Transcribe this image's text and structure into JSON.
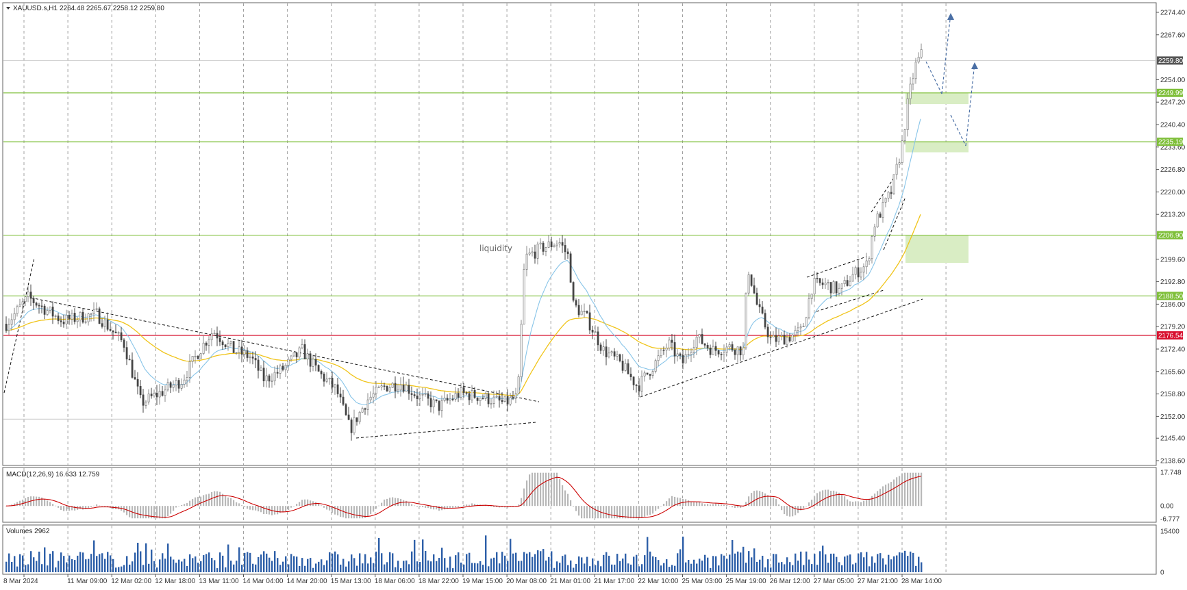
{
  "main_header": {
    "symbol": "XAUUSD.s,H1",
    "ohlc": "2264.48 2265.67 2258.12 2259.80"
  },
  "price_axis": {
    "ticks": [
      "2274.40",
      "2267.60",
      "2254.00",
      "2247.20",
      "2240.40",
      "2233.60",
      "2226.80",
      "2220.00",
      "2213.20",
      "2199.60",
      "2192.80",
      "2186.00",
      "2179.20",
      "2172.40",
      "2165.60",
      "2158.80",
      "2152.00",
      "2145.40",
      "2138.60"
    ],
    "current_price": "2259.80",
    "current_price_color": "#555555"
  },
  "levels": [
    {
      "label": "2249.99",
      "color": "#7fbf3a"
    },
    {
      "label": "2235.19",
      "color": "#7fbf3a"
    },
    {
      "label": "2206.90",
      "color": "#7fbf3a"
    },
    {
      "label": "2188.50",
      "color": "#7fbf3a"
    },
    {
      "label": "2176.54",
      "color": "#d8102e"
    }
  ],
  "annotation": {
    "liquidity": "liquidity"
  },
  "time_axis": {
    "labels": [
      "8 Mar 2024",
      "11 Mar 09:00",
      "12 Mar 02:00",
      "12 Mar 18:00",
      "13 Mar 11:00",
      "14 Mar 04:00",
      "14 Mar 20:00",
      "15 Mar 13:00",
      "18 Mar 06:00",
      "18 Mar 22:00",
      "19 Mar 15:00",
      "20 Mar 08:00",
      "21 Mar 01:00",
      "21 Mar 17:00",
      "22 Mar 10:00",
      "25 Mar 03:00",
      "25 Mar 19:00",
      "26 Mar 12:00",
      "27 Mar 05:00",
      "27 Mar 21:00",
      "28 Mar 14:00"
    ]
  },
  "macd": {
    "header": "MACD(12,26,9) 16.633 12.759",
    "ticks": [
      "17.748",
      "0.00",
      "-6.777"
    ],
    "signal_color": "#cc0000"
  },
  "volumes": {
    "header": "Volumes 2962",
    "ticks": [
      "15400",
      "0"
    ]
  },
  "colors": {
    "ema_fast": "#87c4e8",
    "ema_slow": "#f0c419",
    "zone_fill": "#d9edc4",
    "arrow": "#4a6fa5",
    "grid": "#a0a0a0"
  }
}
